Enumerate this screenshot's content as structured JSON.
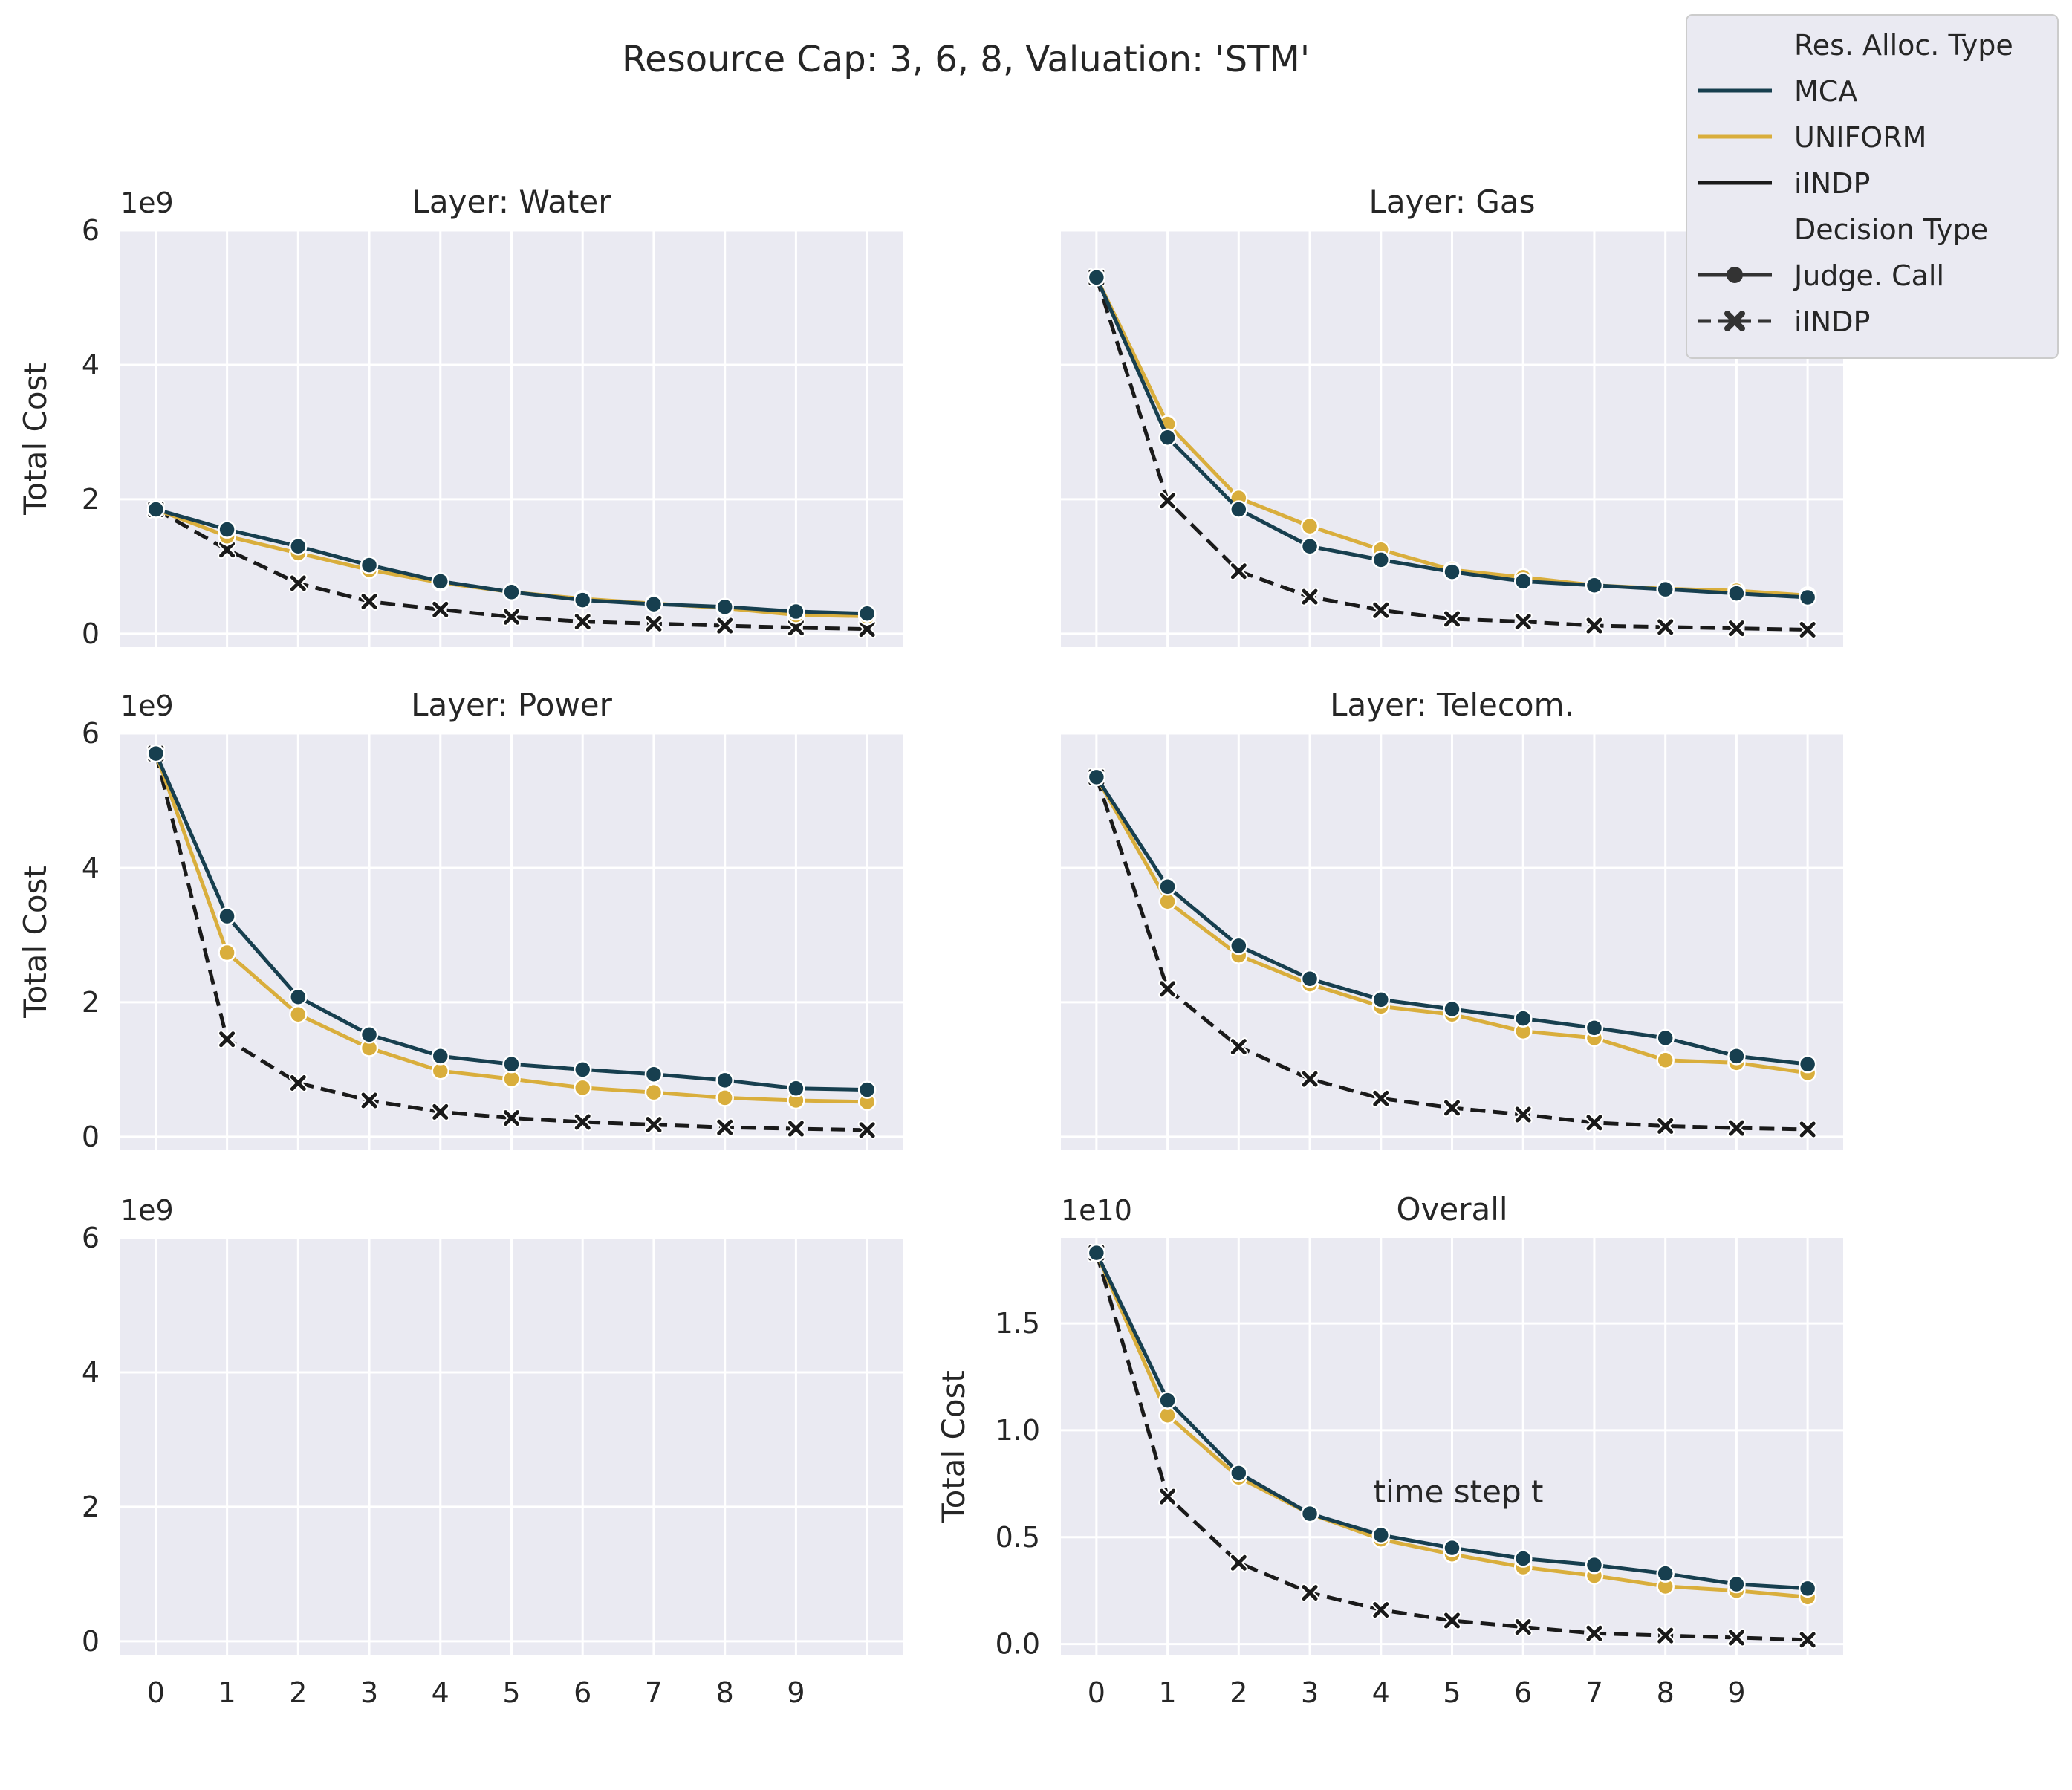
{
  "figure": {
    "title": "Resource Cap: 3, 6, 8, Valuation: 'STM'",
    "xlabel": "time step t",
    "ylabel": "Total Cost",
    "colors": {
      "background": "#EAEAF2",
      "grid": "#FFFFFF",
      "MCA": "#173F4F",
      "UNIFORM": "#D9AE3C",
      "iINDP": "#1A1A1A"
    }
  },
  "legend": {
    "placement": "top-right",
    "headers": [
      "Res. Alloc. Type",
      "Decision Type"
    ],
    "items": [
      {
        "label": "MCA",
        "kind": "line",
        "color": "#173F4F"
      },
      {
        "label": "UNIFORM",
        "kind": "line",
        "color": "#D9AE3C"
      },
      {
        "label": "iINDP",
        "kind": "line",
        "color": "#1A1A1A"
      },
      {
        "label": "Judge. Call",
        "kind": "marker-circle",
        "color": "#333333"
      },
      {
        "label": "iINDP",
        "kind": "marker-x-dashed",
        "color": "#333333"
      }
    ]
  },
  "chart_data": [
    {
      "type": "line",
      "title": "Layer: Water",
      "ylabel": "Total Cost",
      "offset_text": "1e9",
      "ylim": [
        -0.2,
        6.0
      ],
      "yticks": [
        0,
        2,
        4,
        6
      ],
      "ytick_labels": [
        "0",
        "2",
        "4",
        "6"
      ],
      "xlim": [
        -0.5,
        10.5
      ],
      "xticks": [
        0,
        1,
        2,
        3,
        4,
        5,
        6,
        7,
        8,
        9,
        10
      ],
      "xtick_labels": [
        "",
        "",
        "",
        "",
        "",
        "",
        "",
        "",
        "",
        "",
        ""
      ],
      "x": [
        0,
        1,
        2,
        3,
        4,
        5,
        6,
        7,
        8,
        9,
        10
      ],
      "series": [
        {
          "name": "MCA",
          "marker": "circle",
          "dashed": false,
          "values": [
            1.85,
            1.55,
            1.3,
            1.02,
            0.78,
            0.62,
            0.5,
            0.44,
            0.4,
            0.33,
            0.3
          ]
        },
        {
          "name": "UNIFORM",
          "marker": "circle",
          "dashed": false,
          "values": [
            1.85,
            1.45,
            1.2,
            0.95,
            0.76,
            0.62,
            0.52,
            0.45,
            0.38,
            0.28,
            0.26
          ]
        },
        {
          "name": "iINDP",
          "marker": "x",
          "dashed": true,
          "values": [
            1.85,
            1.25,
            0.75,
            0.48,
            0.36,
            0.25,
            0.18,
            0.15,
            0.12,
            0.09,
            0.07
          ]
        }
      ]
    },
    {
      "type": "line",
      "title": "Layer: Gas",
      "ylabel": "",
      "offset_text": "",
      "ylim": [
        -0.2,
        6.0
      ],
      "yticks": [
        0,
        2,
        4,
        6
      ],
      "ytick_labels": [
        "",
        "",
        "",
        ""
      ],
      "xlim": [
        -0.5,
        10.5
      ],
      "xticks": [
        0,
        1,
        2,
        3,
        4,
        5,
        6,
        7,
        8,
        9,
        10
      ],
      "xtick_labels": [
        "",
        "",
        "",
        "",
        "",
        "",
        "",
        "",
        "",
        "",
        ""
      ],
      "x": [
        0,
        1,
        2,
        3,
        4,
        5,
        6,
        7,
        8,
        9,
        10
      ],
      "series": [
        {
          "name": "MCA",
          "marker": "circle",
          "dashed": false,
          "values": [
            5.3,
            2.92,
            1.85,
            1.3,
            1.1,
            0.92,
            0.78,
            0.72,
            0.66,
            0.6,
            0.54
          ]
        },
        {
          "name": "UNIFORM",
          "marker": "circle",
          "dashed": false,
          "values": [
            5.3,
            3.12,
            2.02,
            1.6,
            1.25,
            0.95,
            0.84,
            0.72,
            0.67,
            0.64,
            0.57
          ]
        },
        {
          "name": "iINDP",
          "marker": "x",
          "dashed": true,
          "values": [
            5.3,
            1.98,
            0.93,
            0.55,
            0.35,
            0.22,
            0.18,
            0.12,
            0.1,
            0.08,
            0.06
          ]
        }
      ]
    },
    {
      "type": "line",
      "title": "Layer: Power",
      "ylabel": "Total Cost",
      "offset_text": "1e9",
      "ylim": [
        -0.2,
        6.0
      ],
      "yticks": [
        0,
        2,
        4,
        6
      ],
      "ytick_labels": [
        "0",
        "2",
        "4",
        "6"
      ],
      "xlim": [
        -0.5,
        10.5
      ],
      "xticks": [
        0,
        1,
        2,
        3,
        4,
        5,
        6,
        7,
        8,
        9,
        10
      ],
      "xtick_labels": [
        "",
        "",
        "",
        "",
        "",
        "",
        "",
        "",
        "",
        "",
        ""
      ],
      "x": [
        0,
        1,
        2,
        3,
        4,
        5,
        6,
        7,
        8,
        9,
        10
      ],
      "series": [
        {
          "name": "MCA",
          "marker": "circle",
          "dashed": false,
          "values": [
            5.7,
            3.28,
            2.08,
            1.52,
            1.2,
            1.08,
            1.0,
            0.93,
            0.84,
            0.72,
            0.7
          ]
        },
        {
          "name": "UNIFORM",
          "marker": "circle",
          "dashed": false,
          "values": [
            5.7,
            2.74,
            1.82,
            1.32,
            0.98,
            0.86,
            0.73,
            0.66,
            0.58,
            0.54,
            0.52
          ]
        },
        {
          "name": "iINDP",
          "marker": "x",
          "dashed": true,
          "values": [
            5.7,
            1.45,
            0.8,
            0.54,
            0.37,
            0.28,
            0.22,
            0.18,
            0.14,
            0.12,
            0.1
          ]
        }
      ]
    },
    {
      "type": "line",
      "title": "Layer: Telecom.",
      "ylabel": "",
      "offset_text": "",
      "ylim": [
        -0.2,
        6.0
      ],
      "yticks": [
        0,
        2,
        4,
        6
      ],
      "ytick_labels": [
        "",
        "",
        "",
        ""
      ],
      "xlim": [
        -0.5,
        10.5
      ],
      "xticks": [
        0,
        1,
        2,
        3,
        4,
        5,
        6,
        7,
        8,
        9,
        10
      ],
      "xtick_labels": [
        "",
        "",
        "",
        "",
        "",
        "",
        "",
        "",
        "",
        "",
        ""
      ],
      "x": [
        0,
        1,
        2,
        3,
        4,
        5,
        6,
        7,
        8,
        9,
        10
      ],
      "series": [
        {
          "name": "MCA",
          "marker": "circle",
          "dashed": false,
          "values": [
            5.35,
            3.72,
            2.84,
            2.35,
            2.04,
            1.9,
            1.76,
            1.62,
            1.47,
            1.2,
            1.08
          ]
        },
        {
          "name": "UNIFORM",
          "marker": "circle",
          "dashed": false,
          "values": [
            5.35,
            3.5,
            2.7,
            2.27,
            1.94,
            1.82,
            1.57,
            1.47,
            1.14,
            1.1,
            0.95
          ]
        },
        {
          "name": "iINDP",
          "marker": "x",
          "dashed": true,
          "values": [
            5.35,
            2.2,
            1.34,
            0.86,
            0.57,
            0.43,
            0.33,
            0.21,
            0.16,
            0.13,
            0.11
          ]
        }
      ]
    },
    {
      "type": "line",
      "title": "",
      "ylabel": "",
      "offset_text": "1e9",
      "ylim": [
        -0.2,
        6.0
      ],
      "yticks": [
        0,
        2,
        4,
        6
      ],
      "ytick_labels": [
        "0",
        "2",
        "4",
        "6"
      ],
      "xlim": [
        -0.5,
        10.5
      ],
      "xticks": [
        0,
        1,
        2,
        3,
        4,
        5,
        6,
        7,
        8,
        9,
        10
      ],
      "xtick_labels": [
        "0",
        "1",
        "2",
        "3",
        "4",
        "5",
        "6",
        "7",
        "8",
        "9",
        ""
      ],
      "x": [],
      "series": []
    },
    {
      "type": "line",
      "title": "Overall",
      "ylabel": "Total Cost",
      "xlabel": "time step t",
      "offset_text": "1e10",
      "ylim": [
        -0.05,
        1.9
      ],
      "yticks": [
        0.0,
        0.5,
        1.0,
        1.5
      ],
      "ytick_labels": [
        "0.0",
        "0.5",
        "1.0",
        "1.5"
      ],
      "xlim": [
        -0.5,
        10.5
      ],
      "xticks": [
        0,
        1,
        2,
        3,
        4,
        5,
        6,
        7,
        8,
        9,
        10
      ],
      "xtick_labels": [
        "0",
        "1",
        "2",
        "3",
        "4",
        "5",
        "6",
        "7",
        "8",
        "9",
        ""
      ],
      "x": [
        0,
        1,
        2,
        3,
        4,
        5,
        6,
        7,
        8,
        9,
        10
      ],
      "series": [
        {
          "name": "MCA",
          "marker": "circle",
          "dashed": false,
          "values": [
            1.83,
            1.14,
            0.8,
            0.61,
            0.51,
            0.45,
            0.4,
            0.37,
            0.33,
            0.28,
            0.26
          ]
        },
        {
          "name": "UNIFORM",
          "marker": "circle",
          "dashed": false,
          "values": [
            1.83,
            1.07,
            0.78,
            0.61,
            0.49,
            0.42,
            0.36,
            0.32,
            0.27,
            0.25,
            0.22
          ]
        },
        {
          "name": "iINDP",
          "marker": "x",
          "dashed": true,
          "values": [
            1.83,
            0.69,
            0.38,
            0.24,
            0.16,
            0.11,
            0.08,
            0.05,
            0.04,
            0.03,
            0.02
          ]
        }
      ]
    }
  ]
}
